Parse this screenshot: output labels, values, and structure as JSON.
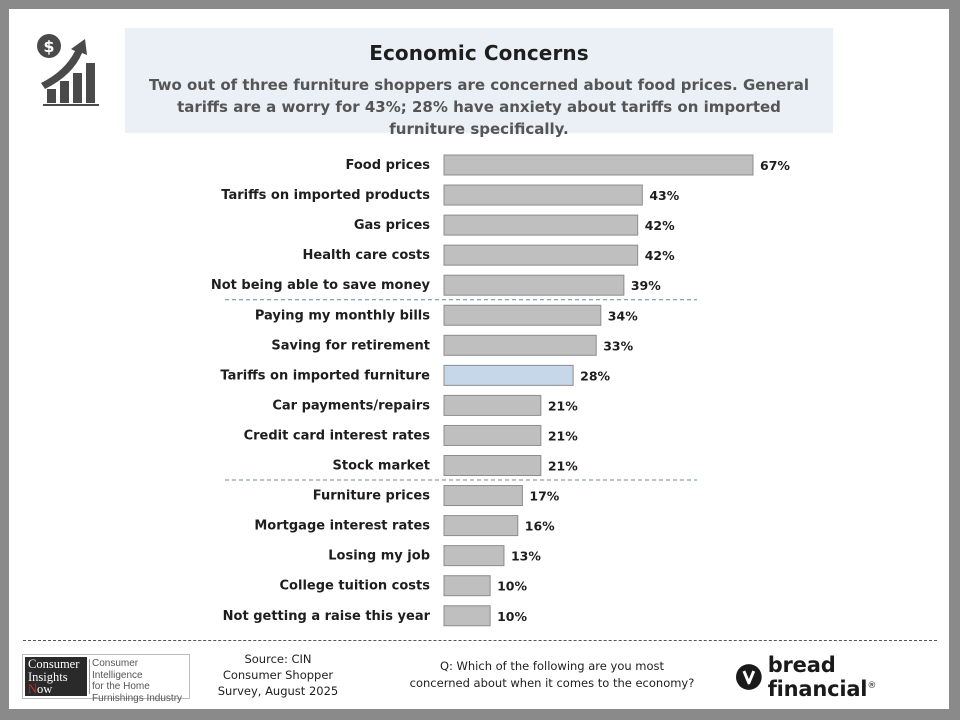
{
  "header": {
    "title": "Economic Concerns",
    "subtitle": "Two out of three furniture shoppers are concerned about food prices. General tariffs are a worry for 43%; 28% have anxiety about tariffs on imported furniture specifically.",
    "icon": "dollar-growth-chart-icon"
  },
  "chart_data": {
    "type": "bar",
    "orientation": "horizontal",
    "categories": [
      "Food prices",
      "Tariffs on imported products",
      "Gas prices",
      "Health care costs",
      "Not being able to save money",
      "Paying my monthly bills",
      "Saving for retirement",
      "Tariffs on imported furniture",
      "Car payments/repairs",
      "Credit card interest rates",
      "Stock market",
      "Furniture prices",
      "Mortgage interest rates",
      "Losing my job",
      "College tuition costs",
      "Not getting a raise this year"
    ],
    "values": [
      67,
      43,
      42,
      42,
      39,
      34,
      33,
      28,
      21,
      21,
      21,
      17,
      16,
      13,
      10,
      10
    ],
    "value_labels": [
      "67%",
      "43%",
      "42%",
      "42%",
      "39%",
      "34%",
      "33%",
      "28%",
      "21%",
      "21%",
      "21%",
      "17%",
      "16%",
      "13%",
      "10%",
      "10%"
    ],
    "highlight_index": 7,
    "group_dividers_after": [
      4,
      10
    ],
    "xlim": [
      0,
      70
    ],
    "grid": false,
    "colors": {
      "bar": "#bfbfbf",
      "highlight": "#c5d7e8",
      "bar_border": "#8c8c8c",
      "divider": "#5f8aa8"
    }
  },
  "footer": {
    "logo": {
      "line1": "Consumer",
      "line2": "Insights",
      "line3_letter": "N",
      "line3_rest": "ow",
      "right_line1": "Consumer Intelligence",
      "right_line2": "for the Home",
      "right_line3": "Furnishings Industry"
    },
    "source_line1": "Source: CIN",
    "source_line2": "Consumer Shopper",
    "source_line3": "Survey, August 2025",
    "question_line1": "Q: Which of the following are you most",
    "question_line2": "concerned about when it comes to the economy?",
    "brand": "bread financial",
    "brand_mark": "®",
    "brand_icon": "bread-financial-logo-icon"
  }
}
